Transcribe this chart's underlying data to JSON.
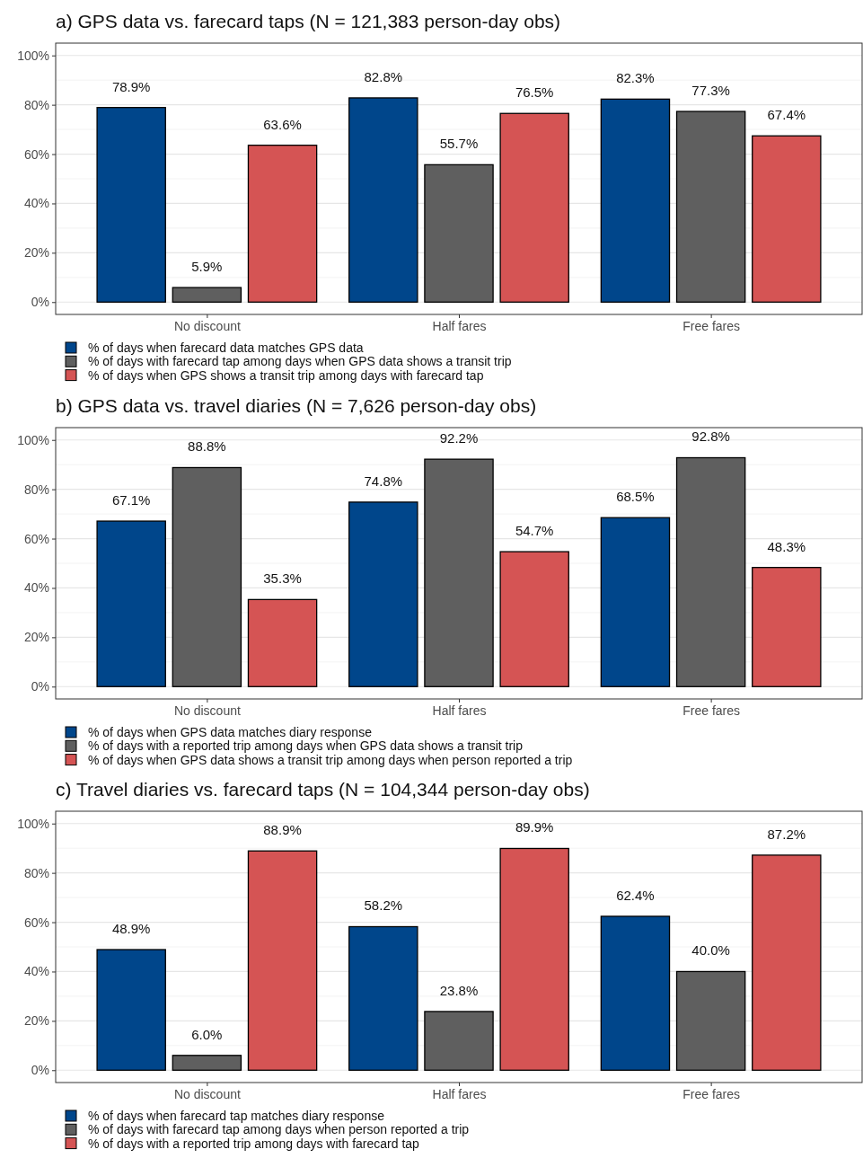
{
  "chart_data": [
    {
      "type": "bar",
      "title": "a) GPS data vs. farecard taps (N = 121,383 person-day obs)",
      "categories": [
        "No discount",
        "Half fares",
        "Free fares"
      ],
      "ylim": [
        -5,
        105
      ],
      "yticks": [
        {
          "value": 0,
          "label": "0%"
        },
        {
          "value": 20,
          "label": "20%"
        },
        {
          "value": 40,
          "label": "40%"
        },
        {
          "value": 60,
          "label": "60%"
        },
        {
          "value": 80,
          "label": "80%"
        },
        {
          "value": 100,
          "label": "100%"
        }
      ],
      "grid": true,
      "legend": "bottom",
      "series": [
        {
          "name": "% of days when farecard data matches GPS data",
          "color": "#00468b",
          "values": [
            78.9,
            82.8,
            82.3
          ],
          "value_labels": [
            "78.9%",
            "82.8%",
            "82.3%"
          ]
        },
        {
          "name": "% of days with farecard tap among days when GPS data shows a transit trip",
          "color": "#5f5f5f",
          "values": [
            5.9,
            55.7,
            77.3
          ],
          "value_labels": [
            "5.9%",
            "55.7%",
            "77.3%"
          ]
        },
        {
          "name": "% of days when GPS shows a transit trip among days with farecard tap",
          "color": "#d55454",
          "values": [
            63.6,
            76.5,
            67.4
          ],
          "value_labels": [
            "63.6%",
            "76.5%",
            "67.4%"
          ]
        }
      ]
    },
    {
      "type": "bar",
      "title": "b) GPS data vs. travel diaries (N = 7,626 person-day obs)",
      "categories": [
        "No discount",
        "Half fares",
        "Free fares"
      ],
      "ylim": [
        -5,
        105
      ],
      "yticks": [
        {
          "value": 0,
          "label": "0%"
        },
        {
          "value": 20,
          "label": "20%"
        },
        {
          "value": 40,
          "label": "40%"
        },
        {
          "value": 60,
          "label": "60%"
        },
        {
          "value": 80,
          "label": "80%"
        },
        {
          "value": 100,
          "label": "100%"
        }
      ],
      "grid": true,
      "legend": "bottom",
      "series": [
        {
          "name": "% of days when GPS data matches diary response",
          "color": "#00468b",
          "values": [
            67.1,
            74.8,
            68.5
          ],
          "value_labels": [
            "67.1%",
            "74.8%",
            "68.5%"
          ]
        },
        {
          "name": "% of days with a reported trip among days when GPS data shows a transit trip",
          "color": "#5f5f5f",
          "values": [
            88.8,
            92.2,
            92.8
          ],
          "value_labels": [
            "88.8%",
            "92.2%",
            "92.8%"
          ]
        },
        {
          "name": "% of days when GPS data shows a transit trip among days when person reported a trip",
          "color": "#d55454",
          "values": [
            35.3,
            54.7,
            48.3
          ],
          "value_labels": [
            "35.3%",
            "54.7%",
            "48.3%"
          ]
        }
      ]
    },
    {
      "type": "bar",
      "title": "c) Travel diaries vs. farecard taps (N = 104,344 person-day obs)",
      "categories": [
        "No discount",
        "Half fares",
        "Free fares"
      ],
      "ylim": [
        -5,
        105
      ],
      "yticks": [
        {
          "value": 0,
          "label": "0%"
        },
        {
          "value": 20,
          "label": "20%"
        },
        {
          "value": 40,
          "label": "40%"
        },
        {
          "value": 60,
          "label": "60%"
        },
        {
          "value": 80,
          "label": "80%"
        },
        {
          "value": 100,
          "label": "100%"
        }
      ],
      "grid": true,
      "legend": "bottom",
      "series": [
        {
          "name": "% of days when farecard tap matches diary response",
          "color": "#00468b",
          "values": [
            48.9,
            58.2,
            62.4
          ],
          "value_labels": [
            "48.9%",
            "58.2%",
            "62.4%"
          ]
        },
        {
          "name": "% of days with farecard tap among days when person reported a trip",
          "color": "#5f5f5f",
          "values": [
            6.0,
            23.8,
            40.0
          ],
          "value_labels": [
            "6.0%",
            "23.8%",
            "40.0%"
          ]
        },
        {
          "name": "% of days with a reported trip among days with farecard tap",
          "color": "#d55454",
          "values": [
            88.9,
            89.9,
            87.2
          ],
          "value_labels": [
            "88.9%",
            "89.9%",
            "87.2%"
          ]
        }
      ]
    }
  ]
}
